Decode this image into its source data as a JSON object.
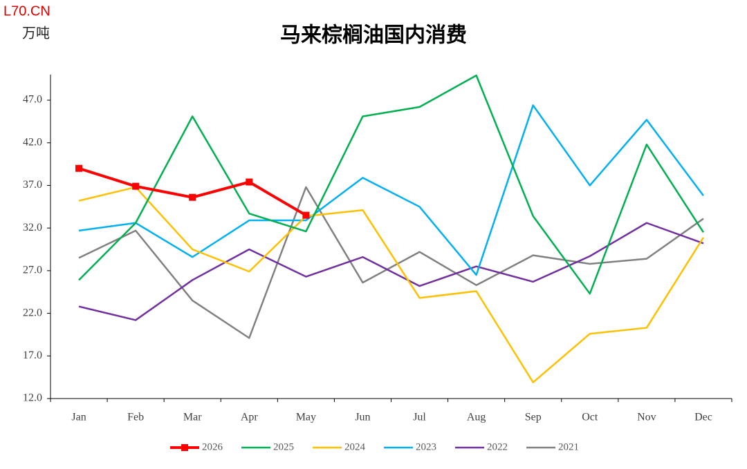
{
  "chart_data": {
    "type": "line",
    "title": "马来棕榈油国内消费",
    "source": "L70.CN",
    "unit": "万吨",
    "categories": [
      "Jan",
      "Feb",
      "Mar",
      "Apr",
      "May",
      "Jun",
      "Jul",
      "Aug",
      "Sep",
      "Oct",
      "Nov",
      "Dec"
    ],
    "series": [
      {
        "name": "2026",
        "color": "#ff0000",
        "marker": "square",
        "values": [
          39.0,
          36.9,
          35.6,
          37.4,
          33.5,
          null,
          null,
          null,
          null,
          null,
          null,
          null
        ]
      },
      {
        "name": "2025",
        "color": "#00b050",
        "values": [
          25.9,
          32.6,
          45.1,
          33.7,
          31.6,
          45.1,
          46.2,
          49.9,
          33.4,
          24.3,
          41.8,
          31.5
        ]
      },
      {
        "name": "2024",
        "color": "#ffc000",
        "values": [
          35.2,
          36.8,
          29.5,
          26.9,
          33.4,
          34.1,
          23.8,
          24.6,
          13.9,
          19.6,
          20.3,
          30.9
        ]
      },
      {
        "name": "2023",
        "color": "#00b0f0",
        "values": [
          31.7,
          32.6,
          28.6,
          32.9,
          32.9,
          37.9,
          34.5,
          26.5,
          46.4,
          37.0,
          44.7,
          35.8
        ]
      },
      {
        "name": "2022",
        "color": "#7030a0",
        "values": [
          22.8,
          21.2,
          25.9,
          29.5,
          26.3,
          28.6,
          25.2,
          27.5,
          25.7,
          28.7,
          32.6,
          30.2
        ]
      },
      {
        "name": "2021",
        "color": "#808080",
        "values": [
          28.5,
          31.7,
          23.5,
          19.1,
          36.8,
          25.6,
          29.2,
          25.3,
          28.8,
          27.8,
          28.4,
          33.1
        ]
      }
    ],
    "ylim": [
      12,
      50
    ],
    "yticks": [
      {
        "value": 12,
        "label": "12.0"
      },
      {
        "value": 17,
        "label": "17.0"
      },
      {
        "value": 22,
        "label": "22.0"
      },
      {
        "value": 27,
        "label": "27.0"
      },
      {
        "value": 32,
        "label": "32.0"
      },
      {
        "value": 37,
        "label": "37.0"
      },
      {
        "value": 42,
        "label": "42.0"
      },
      {
        "value": 47,
        "label": "47.0"
      }
    ],
    "grid": false,
    "legend": "bottom"
  }
}
